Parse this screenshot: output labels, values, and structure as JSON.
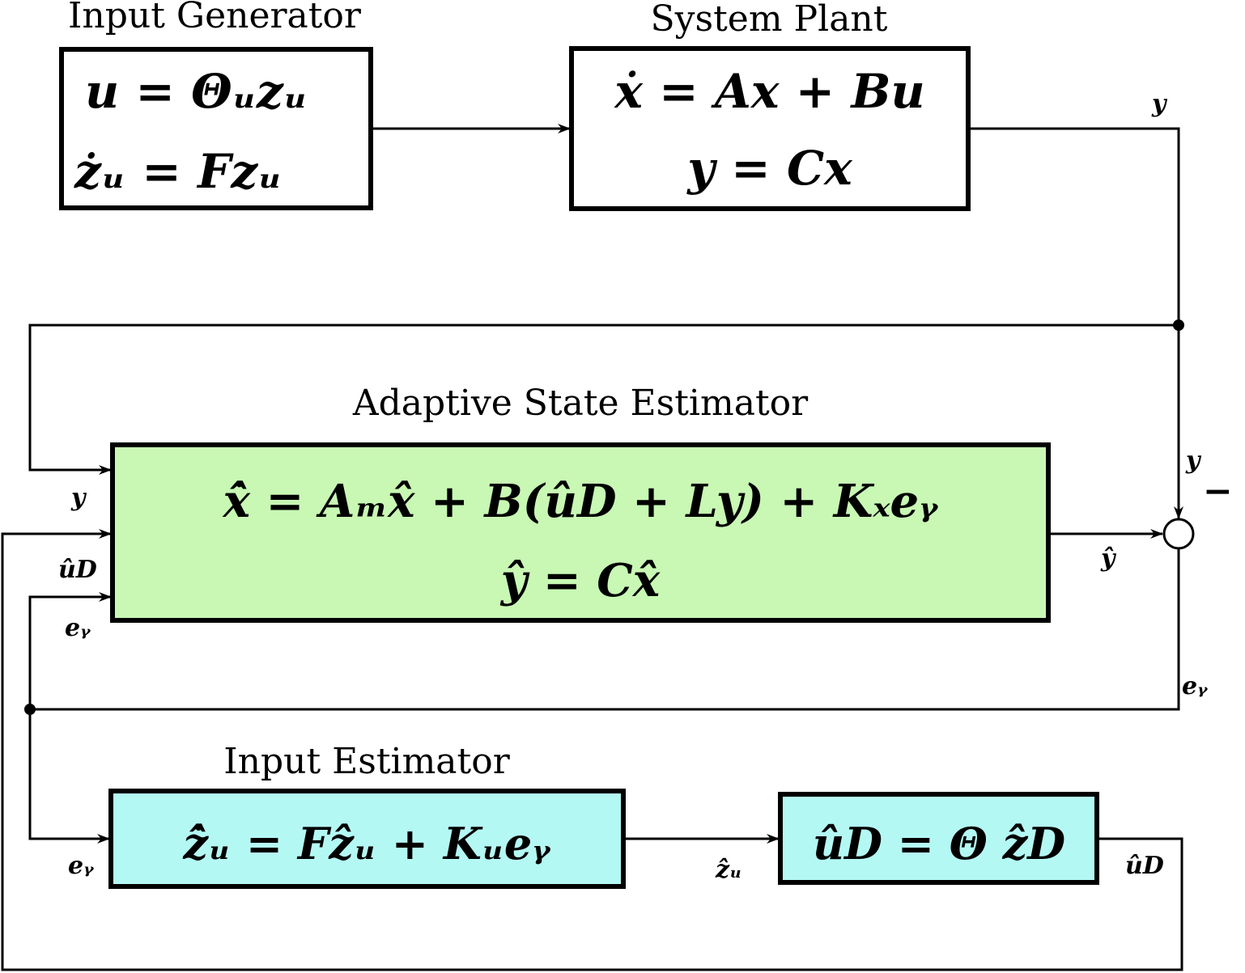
{
  "colors": {
    "state_estimator_fill": "#c8f8b4",
    "input_estimator_fill": "#b4f8f4",
    "plain_fill": "#ffffff",
    "stroke": "#000000"
  },
  "blocks": {
    "input_generator": {
      "title": "Input Generator",
      "eq1": "u  = Θᵤzᵤ",
      "eq2": "żᵤ = Fzᵤ"
    },
    "system_plant": {
      "title": "System Plant",
      "eq1": "ẋ = Ax + Bu",
      "eq2": "y = Cx"
    },
    "adaptive_state_estimator": {
      "title": "Adaptive State Estimator",
      "eq1": "x̂̇ = Aₘx̂ + B(ûD + Ly) + Kₓeᵧ",
      "eq2": "ŷ = Cx̂"
    },
    "input_estimator": {
      "title": "Input Estimator",
      "eq1": "ẑ̇ᵤ = Fẑᵤ + Kᵤeᵧ"
    },
    "input_map": {
      "eq1": "ûD = Θ ẑD"
    }
  },
  "signals": {
    "y_plant_out": "y",
    "y_sum_in": "y",
    "sum_minus": "−",
    "y_hat": "ŷ",
    "e_y_feedback": "eᵧ",
    "y_in": "y",
    "u_hat_d_in": "ûD",
    "e_y_in": "eᵧ",
    "e_y_input_est": "eᵧ",
    "z_hat_u": "ẑᵤ",
    "u_hat_d_out": "ûD"
  }
}
